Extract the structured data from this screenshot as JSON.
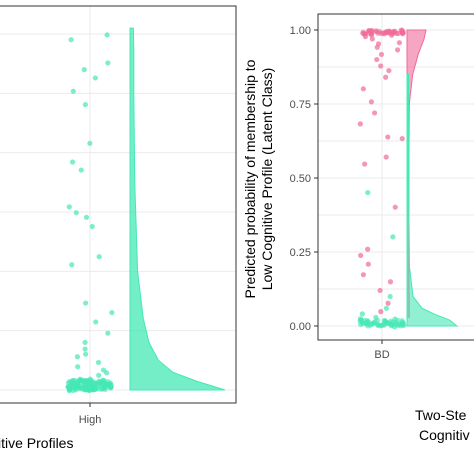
{
  "colors": {
    "panel_border": "#333333",
    "grid": "#ebebeb",
    "teal": "#44e8b4",
    "pink": "#f06a99",
    "axis_text": "#4d4d4d"
  },
  "chart_data": [
    {
      "type": "scatter",
      "subtype": "raincloud",
      "title": "",
      "xlabel": "itive Profiles",
      "ylabel": "",
      "categories": [
        "High"
      ],
      "grid": true,
      "y_plot_range": [
        0,
        1.25
      ],
      "series": [
        {
          "color": "#44e8b4",
          "points_y": [
            1.2,
            1.18,
            1.1,
            1.08,
            1.05,
            1.01,
            0.96,
            0.83,
            0.77,
            0.74,
            0.62,
            0.6,
            0.58,
            0.55,
            0.45,
            0.42,
            0.29,
            0.26,
            0.23,
            0.19,
            0.16,
            0.14,
            0.12,
            0.11,
            0.09,
            0.08,
            0.07,
            0.06,
            0.05,
            0.04,
            0.035,
            0.03,
            0.025,
            0.02,
            0.018,
            0.015,
            0.013,
            0.011,
            0.009,
            0.008,
            0.007,
            0.006,
            0.005,
            0.004,
            0.003,
            0.002,
            0.001,
            0.0
          ],
          "density": [
            [
              0.0,
              1.0
            ],
            [
              0.03,
              0.7
            ],
            [
              0.06,
              0.45
            ],
            [
              0.1,
              0.3
            ],
            [
              0.16,
              0.2
            ],
            [
              0.24,
              0.14
            ],
            [
              0.4,
              0.08
            ],
            [
              0.7,
              0.05
            ],
            [
              1.0,
              0.04
            ],
            [
              1.15,
              0.04
            ],
            [
              1.22,
              0.035
            ]
          ]
        }
      ]
    },
    {
      "type": "scatter",
      "subtype": "raincloud",
      "title": "",
      "xlabel": "Two-Ste Cognitiv",
      "ylabel": "Predicted probability of membership to Low Cognitive Profile (Latent Class)",
      "categories": [
        "BD"
      ],
      "ylim": [
        0,
        1.0
      ],
      "yticks": [
        "0.00",
        "0.25",
        "0.50",
        "0.75",
        "1.00"
      ],
      "grid": true,
      "series": [
        {
          "color": "#f06a99",
          "points_y": [
            1.0,
            0.995,
            0.99,
            0.985,
            0.98,
            0.975,
            0.97,
            0.96,
            0.95,
            0.94,
            0.93,
            0.92,
            0.9,
            0.88,
            0.86,
            0.84,
            0.8,
            0.76,
            0.72,
            0.68,
            0.64,
            0.63,
            0.57,
            0.55,
            0.4,
            0.26,
            0.24,
            0.21,
            0.17,
            0.15,
            0.12,
            0.08,
            0.05
          ],
          "density": [
            [
              0.03,
              0.12
            ],
            [
              0.2,
              0.1
            ],
            [
              0.4,
              0.1
            ],
            [
              0.6,
              0.1
            ],
            [
              0.75,
              0.12
            ],
            [
              0.85,
              0.3
            ],
            [
              0.92,
              0.6
            ],
            [
              0.97,
              0.9
            ],
            [
              1.0,
              1.0
            ]
          ]
        },
        {
          "color": "#44e8b4",
          "points_y": [
            0.45,
            0.3,
            0.1,
            0.06,
            0.04,
            0.03,
            0.025,
            0.02,
            0.018,
            0.015,
            0.012,
            0.01,
            0.008,
            0.006,
            0.005,
            0.004,
            0.003,
            0.002,
            0.001,
            0.0
          ],
          "density": [
            [
              0.0,
              1.0
            ],
            [
              0.02,
              0.85
            ],
            [
              0.04,
              0.55
            ],
            [
              0.06,
              0.3
            ],
            [
              0.1,
              0.12
            ],
            [
              0.2,
              0.05
            ],
            [
              0.5,
              0.03
            ],
            [
              0.85,
              0.03
            ]
          ]
        }
      ]
    }
  ]
}
